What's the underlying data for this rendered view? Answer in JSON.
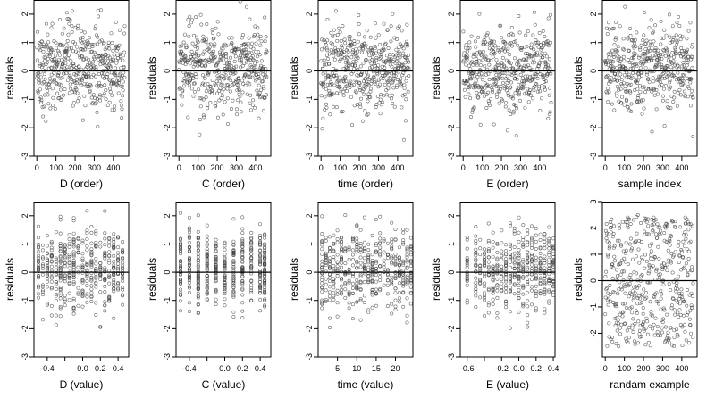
{
  "style": {
    "point_color": "#444444",
    "line_color": "#000000",
    "background": "#ffffff"
  },
  "chart_data": [
    {
      "type": "scatter",
      "xlabel": "D (order)",
      "ylabel": "residuals",
      "xlim": [
        -15,
        480
      ],
      "ylim": [
        -3,
        2.5
      ],
      "xticks": [
        0,
        100,
        200,
        300,
        400
      ],
      "yticks": [
        -3,
        -2,
        -1,
        0,
        1,
        2
      ],
      "pattern": "order",
      "n": 460,
      "refline_y": 0
    },
    {
      "type": "scatter",
      "xlabel": "C (order)",
      "ylabel": "residuals",
      "xlim": [
        -15,
        480
      ],
      "ylim": [
        -3,
        2.5
      ],
      "xticks": [
        0,
        100,
        200,
        300,
        400
      ],
      "yticks": [
        -3,
        -2,
        -1,
        0,
        1,
        2
      ],
      "pattern": "order",
      "n": 460,
      "refline_y": 0
    },
    {
      "type": "scatter",
      "xlabel": "time (order)",
      "ylabel": "residuals",
      "xlim": [
        -15,
        480
      ],
      "ylim": [
        -3,
        2.5
      ],
      "xticks": [
        0,
        100,
        200,
        300,
        400
      ],
      "yticks": [
        -3,
        -2,
        -1,
        0,
        1,
        2
      ],
      "pattern": "order",
      "n": 460,
      "refline_y": 0
    },
    {
      "type": "scatter",
      "xlabel": "E (order)",
      "ylabel": "residuals",
      "xlim": [
        -15,
        480
      ],
      "ylim": [
        -3,
        2.5
      ],
      "xticks": [
        0,
        100,
        200,
        300,
        400
      ],
      "yticks": [
        -3,
        -2,
        -1,
        0,
        1,
        2
      ],
      "pattern": "order",
      "n": 460,
      "refline_y": 0
    },
    {
      "type": "scatter",
      "xlabel": "sample index",
      "ylabel": "residuals",
      "xlim": [
        -15,
        480
      ],
      "ylim": [
        -3,
        2.5
      ],
      "xticks": [
        0,
        100,
        200,
        300,
        400
      ],
      "yticks": [
        -3,
        -2,
        -1,
        0,
        1,
        2
      ],
      "pattern": "order",
      "n": 460,
      "refline_y": 0
    },
    {
      "type": "scatter",
      "xlabel": "D (value)",
      "ylabel": "residuals",
      "xlim": [
        -0.55,
        0.52
      ],
      "ylim": [
        -3,
        2.5
      ],
      "xticks": [
        -0.4,
        -0.2,
        0.0,
        0.2,
        0.4
      ],
      "yticks": [
        -3,
        -2,
        -1,
        0,
        1,
        2
      ],
      "xtick_labels": [
        "-0.4",
        "",
        "0.0",
        "0.2",
        "0.4"
      ],
      "pattern": "value",
      "n": 460,
      "refline_y": 0,
      "x_levels": [
        -0.5,
        -0.45,
        -0.4,
        -0.35,
        -0.3,
        -0.25,
        -0.2,
        -0.15,
        -0.1,
        -0.05,
        0.0,
        0.05,
        0.1,
        0.15,
        0.2,
        0.25,
        0.3,
        0.35,
        0.4,
        0.45
      ]
    },
    {
      "type": "scatter",
      "xlabel": "C (value)",
      "ylabel": "residuals",
      "xlim": [
        -0.55,
        0.52
      ],
      "ylim": [
        -3,
        2.5
      ],
      "xticks": [
        -0.4,
        -0.2,
        0.0,
        0.2,
        0.4
      ],
      "yticks": [
        -3,
        -2,
        -1,
        0,
        1,
        2
      ],
      "xtick_labels": [
        "-0.4",
        "",
        "0.0",
        "0.2",
        "0.4"
      ],
      "pattern": "value",
      "n": 460,
      "refline_y": 0,
      "x_levels": [
        -0.5,
        -0.4,
        -0.3,
        -0.2,
        -0.1,
        0.0,
        0.1,
        0.2,
        0.3,
        0.4,
        0.45
      ]
    },
    {
      "type": "scatter",
      "xlabel": "time (value)",
      "ylabel": "residuals",
      "xlim": [
        0,
        24.5
      ],
      "ylim": [
        -3,
        2.5
      ],
      "xticks": [
        5,
        10,
        15,
        20
      ],
      "yticks": [
        -3,
        -2,
        -1,
        0,
        1,
        2
      ],
      "pattern": "value",
      "n": 460,
      "refline_y": 0,
      "x_levels": [
        1,
        2,
        3,
        4,
        5,
        6,
        7,
        8,
        9,
        10,
        11,
        12,
        13,
        14,
        15,
        16,
        17,
        18,
        19,
        20,
        21,
        22,
        23,
        24
      ]
    },
    {
      "type": "scatter",
      "xlabel": "E (value)",
      "ylabel": "residuals",
      "xlim": [
        -0.68,
        0.42
      ],
      "ylim": [
        -3,
        2.5
      ],
      "xticks": [
        -0.6,
        -0.4,
        -0.2,
        0.0,
        0.2,
        0.4
      ],
      "yticks": [
        -3,
        -2,
        -1,
        0,
        1,
        2
      ],
      "xtick_labels": [
        "-0.6",
        "",
        "-0.2",
        "0.0",
        "0.2",
        "0.4"
      ],
      "pattern": "value",
      "n": 460,
      "refline_y": 0,
      "x_levels": [
        -0.6,
        -0.5,
        -0.45,
        -0.4,
        -0.35,
        -0.3,
        -0.25,
        -0.2,
        -0.15,
        -0.1,
        -0.05,
        0.0,
        0.05,
        0.1,
        0.15,
        0.2,
        0.25,
        0.3,
        0.35,
        0.4
      ]
    },
    {
      "type": "scatter",
      "xlabel": "randam example",
      "ylabel": "residuals",
      "xlim": [
        -15,
        480
      ],
      "ylim": [
        -2.9,
        3.0
      ],
      "xticks": [
        0,
        100,
        200,
        300,
        400
      ],
      "yticks": [
        -2,
        -1,
        0,
        1,
        2,
        3
      ],
      "pattern": "uniform",
      "n": 460,
      "refline_y": 0
    }
  ]
}
